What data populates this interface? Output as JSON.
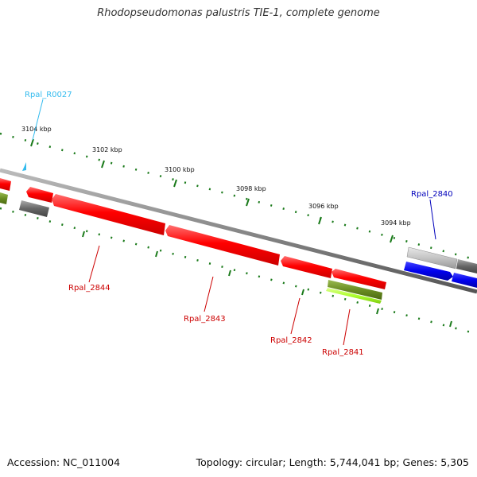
{
  "title": "Rhodopseudomonas palustris TIE-1, complete genome",
  "footer": {
    "accession": "Accession: NC_011004",
    "summary": "Topology: circular; Length: 5,744,041 bp; Genes: 5,305"
  },
  "scale_labels": [
    "3104 kbp",
    "3102 kbp",
    "3100 kbp",
    "3098 kbp",
    "3096 kbp",
    "3094 kbp"
  ],
  "genes": [
    {
      "name": "Rpal_R0027",
      "color": "#33bbee"
    },
    {
      "name": "Rpal_2840",
      "color": "#0000bb"
    },
    {
      "name": "Rpal_2844",
      "color": "#cc0000"
    },
    {
      "name": "Rpal_2843",
      "color": "#cc0000"
    },
    {
      "name": "Rpal_2842",
      "color": "#cc0000"
    },
    {
      "name": "Rpal_2841",
      "color": "#cc0000"
    }
  ],
  "colors": {
    "backbone": "#888888",
    "ticks": "#1a7a1a",
    "gene_red": "#ff0000",
    "gene_blue": "#0000ee",
    "gene_grey": "#777777",
    "gene_light_grey": "#bbbbbb",
    "gene_olive": "#6b8e23",
    "gene_lime": "#adff2f"
  }
}
